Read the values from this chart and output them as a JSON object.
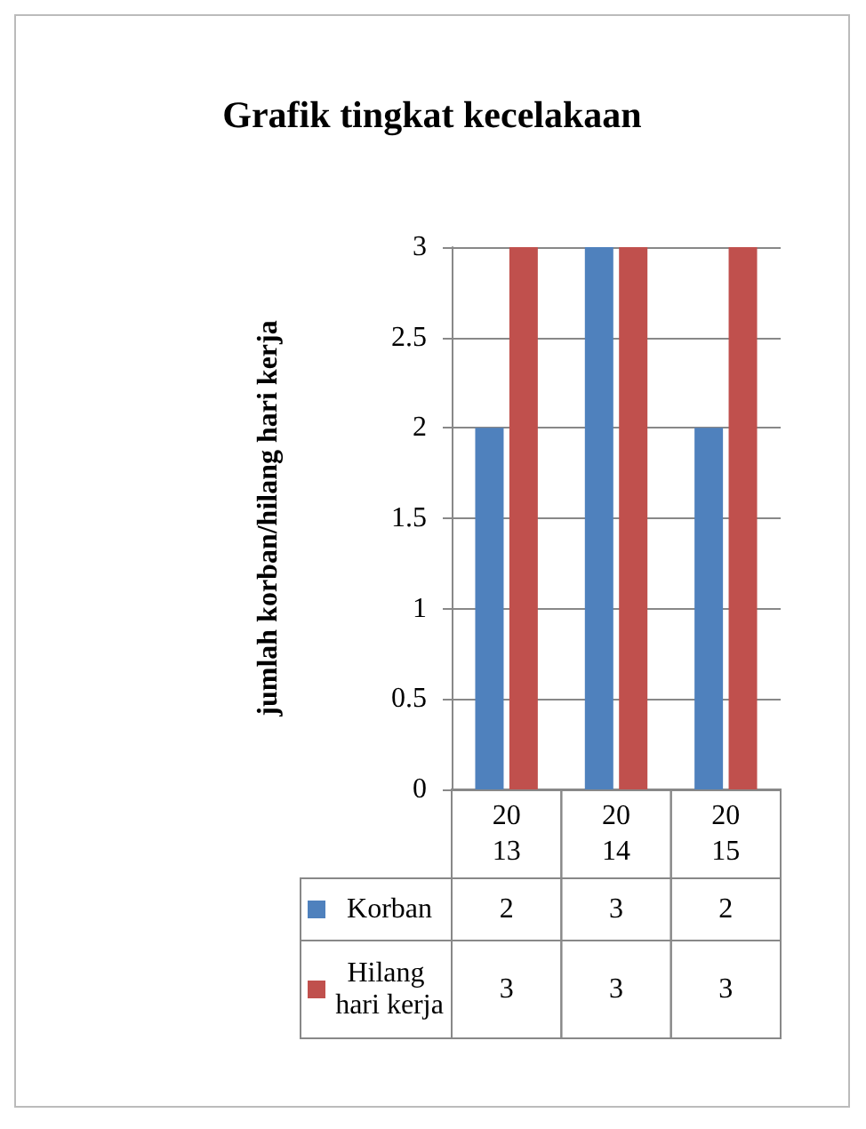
{
  "chart_data": {
    "type": "bar",
    "title": "Grafik tingkat kecelakaan",
    "ylabel": "jumlah korban/hilang hari kerja",
    "categories": [
      "2013",
      "2014",
      "2015"
    ],
    "series": [
      {
        "name": "Korban",
        "color": "#4f81bd",
        "values": [
          2,
          3,
          2
        ]
      },
      {
        "name": "Hilang hari kerja",
        "color": "#c0504d",
        "values": [
          3,
          3,
          3
        ]
      }
    ],
    "ylim": [
      0,
      3
    ],
    "yticks": [
      0,
      0.5,
      1,
      1.5,
      2,
      2.5,
      3
    ],
    "grid": "y",
    "legend": "bottom",
    "data_labels": true
  }
}
